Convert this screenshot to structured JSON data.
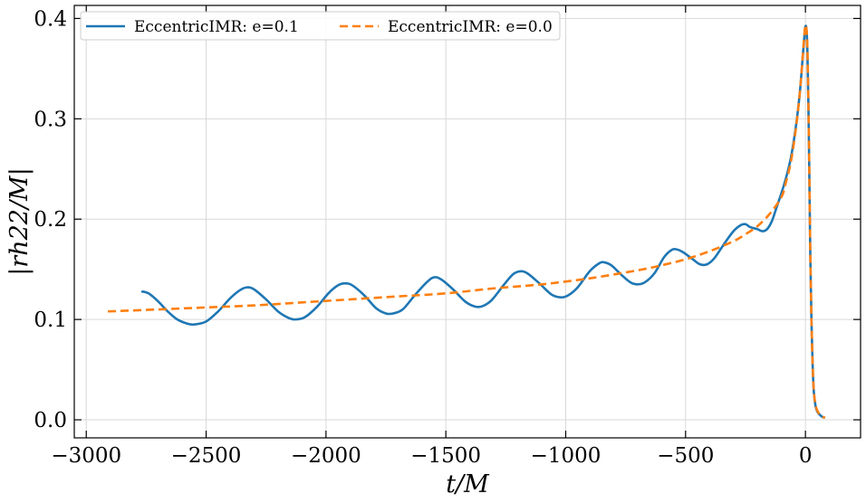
{
  "chart_data": {
    "type": "line",
    "title": "",
    "xlabel": "t/M",
    "ylabel": "|rh22/M|",
    "xlim": [
      -3050,
      230
    ],
    "ylim": [
      -0.018,
      0.413
    ],
    "xticks": [
      -3000,
      -2500,
      -2000,
      -1500,
      -1000,
      -500,
      0
    ],
    "xtick_labels": [
      "−3000",
      "−2500",
      "−2000",
      "−1500",
      "−1000",
      "−500",
      "0"
    ],
    "yticks": [
      0.0,
      0.1,
      0.2,
      0.3,
      0.4
    ],
    "ytick_labels": [
      "0.0",
      "0.1",
      "0.2",
      "0.3",
      "0.4"
    ],
    "grid": true,
    "legend": {
      "placement": "top-left",
      "ncol": 2
    },
    "series": [
      {
        "name": "EccentricIMR: e=0.1",
        "color": "#1f77b4",
        "style": "solid",
        "points": [
          [
            -2770,
            0.128
          ],
          [
            -2740,
            0.126
          ],
          [
            -2700,
            0.118
          ],
          [
            -2660,
            0.108
          ],
          [
            -2620,
            0.1
          ],
          [
            -2580,
            0.096
          ],
          [
            -2550,
            0.095
          ],
          [
            -2500,
            0.098
          ],
          [
            -2450,
            0.108
          ],
          [
            -2400,
            0.121
          ],
          [
            -2360,
            0.129
          ],
          [
            -2330,
            0.132
          ],
          [
            -2300,
            0.13
          ],
          [
            -2250,
            0.12
          ],
          [
            -2200,
            0.108
          ],
          [
            -2160,
            0.102
          ],
          [
            -2130,
            0.1
          ],
          [
            -2090,
            0.102
          ],
          [
            -2040,
            0.112
          ],
          [
            -1990,
            0.126
          ],
          [
            -1950,
            0.134
          ],
          [
            -1920,
            0.136
          ],
          [
            -1890,
            0.134
          ],
          [
            -1840,
            0.124
          ],
          [
            -1790,
            0.111
          ],
          [
            -1750,
            0.106
          ],
          [
            -1720,
            0.106
          ],
          [
            -1680,
            0.11
          ],
          [
            -1630,
            0.124
          ],
          [
            -1580,
            0.137
          ],
          [
            -1550,
            0.142
          ],
          [
            -1520,
            0.14
          ],
          [
            -1470,
            0.13
          ],
          [
            -1420,
            0.118
          ],
          [
            -1380,
            0.113
          ],
          [
            -1350,
            0.113
          ],
          [
            -1310,
            0.119
          ],
          [
            -1260,
            0.134
          ],
          [
            -1220,
            0.145
          ],
          [
            -1190,
            0.148
          ],
          [
            -1160,
            0.146
          ],
          [
            -1110,
            0.136
          ],
          [
            -1060,
            0.125
          ],
          [
            -1020,
            0.122
          ],
          [
            -990,
            0.124
          ],
          [
            -950,
            0.132
          ],
          [
            -900,
            0.148
          ],
          [
            -860,
            0.156
          ],
          [
            -840,
            0.157
          ],
          [
            -810,
            0.154
          ],
          [
            -770,
            0.145
          ],
          [
            -730,
            0.137
          ],
          [
            -700,
            0.135
          ],
          [
            -670,
            0.137
          ],
          [
            -630,
            0.146
          ],
          [
            -590,
            0.162
          ],
          [
            -560,
            0.169
          ],
          [
            -540,
            0.17
          ],
          [
            -510,
            0.167
          ],
          [
            -470,
            0.16
          ],
          [
            -440,
            0.155
          ],
          [
            -410,
            0.155
          ],
          [
            -380,
            0.161
          ],
          [
            -340,
            0.175
          ],
          [
            -300,
            0.188
          ],
          [
            -270,
            0.194
          ],
          [
            -250,
            0.195
          ],
          [
            -230,
            0.192
          ],
          [
            -200,
            0.19
          ],
          [
            -180,
            0.188
          ],
          [
            -160,
            0.19
          ],
          [
            -140,
            0.198
          ],
          [
            -120,
            0.212
          ],
          [
            -100,
            0.226
          ],
          [
            -80,
            0.242
          ],
          [
            -60,
            0.262
          ],
          [
            -40,
            0.292
          ],
          [
            -25,
            0.322
          ],
          [
            -15,
            0.35
          ],
          [
            -8,
            0.372
          ],
          [
            -3,
            0.386
          ],
          [
            0,
            0.392
          ],
          [
            4,
            0.39
          ],
          [
            8,
            0.37
          ],
          [
            12,
            0.32
          ],
          [
            16,
            0.25
          ],
          [
            20,
            0.17
          ],
          [
            25,
            0.1
          ],
          [
            30,
            0.055
          ],
          [
            35,
            0.028
          ],
          [
            42,
            0.014
          ],
          [
            50,
            0.008
          ],
          [
            60,
            0.005
          ],
          [
            70,
            0.003
          ],
          [
            82,
            0.002
          ]
        ]
      },
      {
        "name": "EccentricIMR: e=0.0",
        "color": "#ff7f0e",
        "style": "dashed",
        "points": [
          [
            -2910,
            0.108
          ],
          [
            -2700,
            0.11
          ],
          [
            -2500,
            0.112
          ],
          [
            -2300,
            0.114
          ],
          [
            -2100,
            0.117
          ],
          [
            -1900,
            0.12
          ],
          [
            -1700,
            0.123
          ],
          [
            -1500,
            0.126
          ],
          [
            -1300,
            0.131
          ],
          [
            -1100,
            0.135
          ],
          [
            -900,
            0.141
          ],
          [
            -700,
            0.149
          ],
          [
            -600,
            0.154
          ],
          [
            -500,
            0.16
          ],
          [
            -400,
            0.168
          ],
          [
            -300,
            0.178
          ],
          [
            -250,
            0.185
          ],
          [
            -200,
            0.193
          ],
          [
            -150,
            0.205
          ],
          [
            -100,
            0.222
          ],
          [
            -80,
            0.238
          ],
          [
            -60,
            0.258
          ],
          [
            -40,
            0.29
          ],
          [
            -25,
            0.322
          ],
          [
            -15,
            0.35
          ],
          [
            -8,
            0.373
          ],
          [
            -3,
            0.388
          ],
          [
            0,
            0.393
          ],
          [
            4,
            0.391
          ],
          [
            8,
            0.372
          ],
          [
            12,
            0.322
          ],
          [
            16,
            0.252
          ],
          [
            20,
            0.172
          ],
          [
            25,
            0.102
          ],
          [
            30,
            0.056
          ],
          [
            35,
            0.029
          ],
          [
            42,
            0.015
          ],
          [
            50,
            0.009
          ],
          [
            60,
            0.005
          ],
          [
            70,
            0.003
          ],
          [
            82,
            0.002
          ]
        ]
      }
    ]
  }
}
